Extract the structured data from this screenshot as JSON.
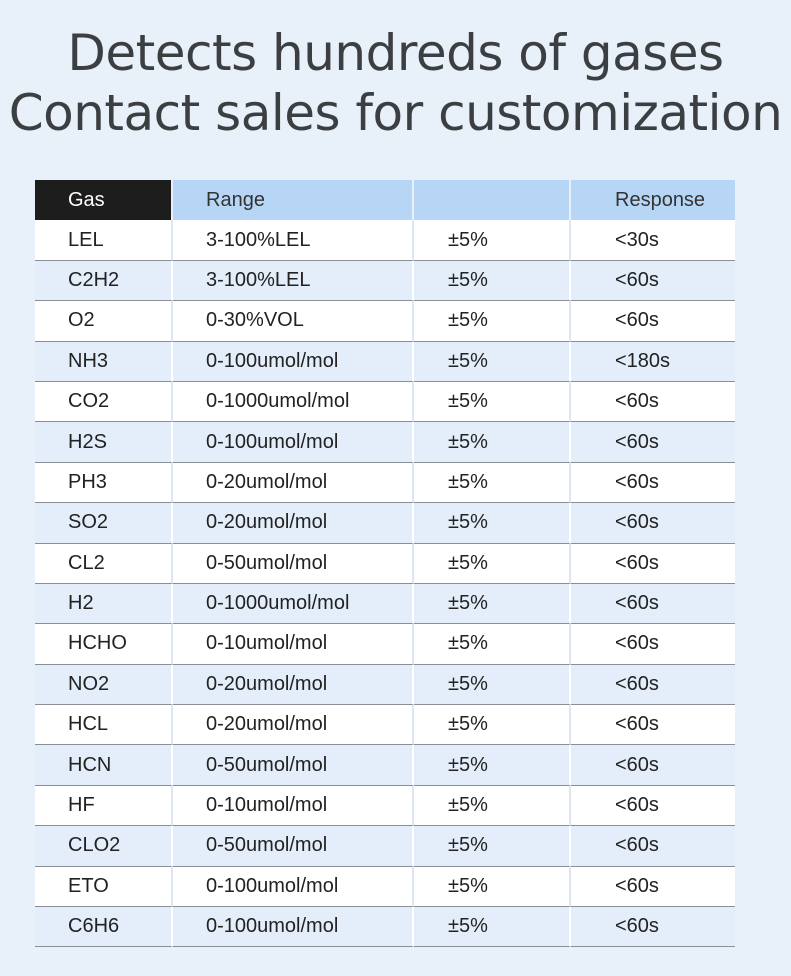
{
  "headline": {
    "line1": "Detects hundreds of gases",
    "line2": "Contact sales for customization"
  },
  "table": {
    "headers": [
      "Gas",
      "Range",
      "",
      "Response"
    ],
    "rows": [
      [
        "LEL",
        "3-100%LEL",
        "±5%",
        "<30s"
      ],
      [
        "C2H2",
        "3-100%LEL",
        "±5%",
        "<60s"
      ],
      [
        "O2",
        "0-30%VOL",
        "±5%",
        "<60s"
      ],
      [
        "NH3",
        "0-100umol/mol",
        "±5%",
        "<180s"
      ],
      [
        "CO2",
        "0-1000umol/mol",
        "±5%",
        "<60s"
      ],
      [
        "H2S",
        "0-100umol/mol",
        "±5%",
        "<60s"
      ],
      [
        "PH3",
        "0-20umol/mol",
        "±5%",
        "<60s"
      ],
      [
        "SO2",
        "0-20umol/mol",
        "±5%",
        "<60s"
      ],
      [
        "CL2",
        "0-50umol/mol",
        "±5%",
        "<60s"
      ],
      [
        "H2",
        "0-1000umol/mol",
        "±5%",
        "<60s"
      ],
      [
        "HCHO",
        "0-10umol/mol",
        "±5%",
        "<60s"
      ],
      [
        "NO2",
        "0-20umol/mol",
        "±5%",
        "<60s"
      ],
      [
        "HCL",
        "0-20umol/mol",
        "±5%",
        "<60s"
      ],
      [
        "HCN",
        "0-50umol/mol",
        "±5%",
        "<60s"
      ],
      [
        "HF",
        "0-10umol/mol",
        "±5%",
        "<60s"
      ],
      [
        "CLO2",
        "0-50umol/mol",
        "±5%",
        "<60s"
      ],
      [
        "ETO",
        "0-100umol/mol",
        "±5%",
        "<60s"
      ],
      [
        "C6H6",
        "0-100umol/mol",
        "±5%",
        "<60s"
      ]
    ]
  },
  "colors": {
    "background": "#e8f0fa",
    "header_blue": "#b7d6f6",
    "header_dark": "#1d1d1d",
    "row_alt": "#e4eefa"
  }
}
